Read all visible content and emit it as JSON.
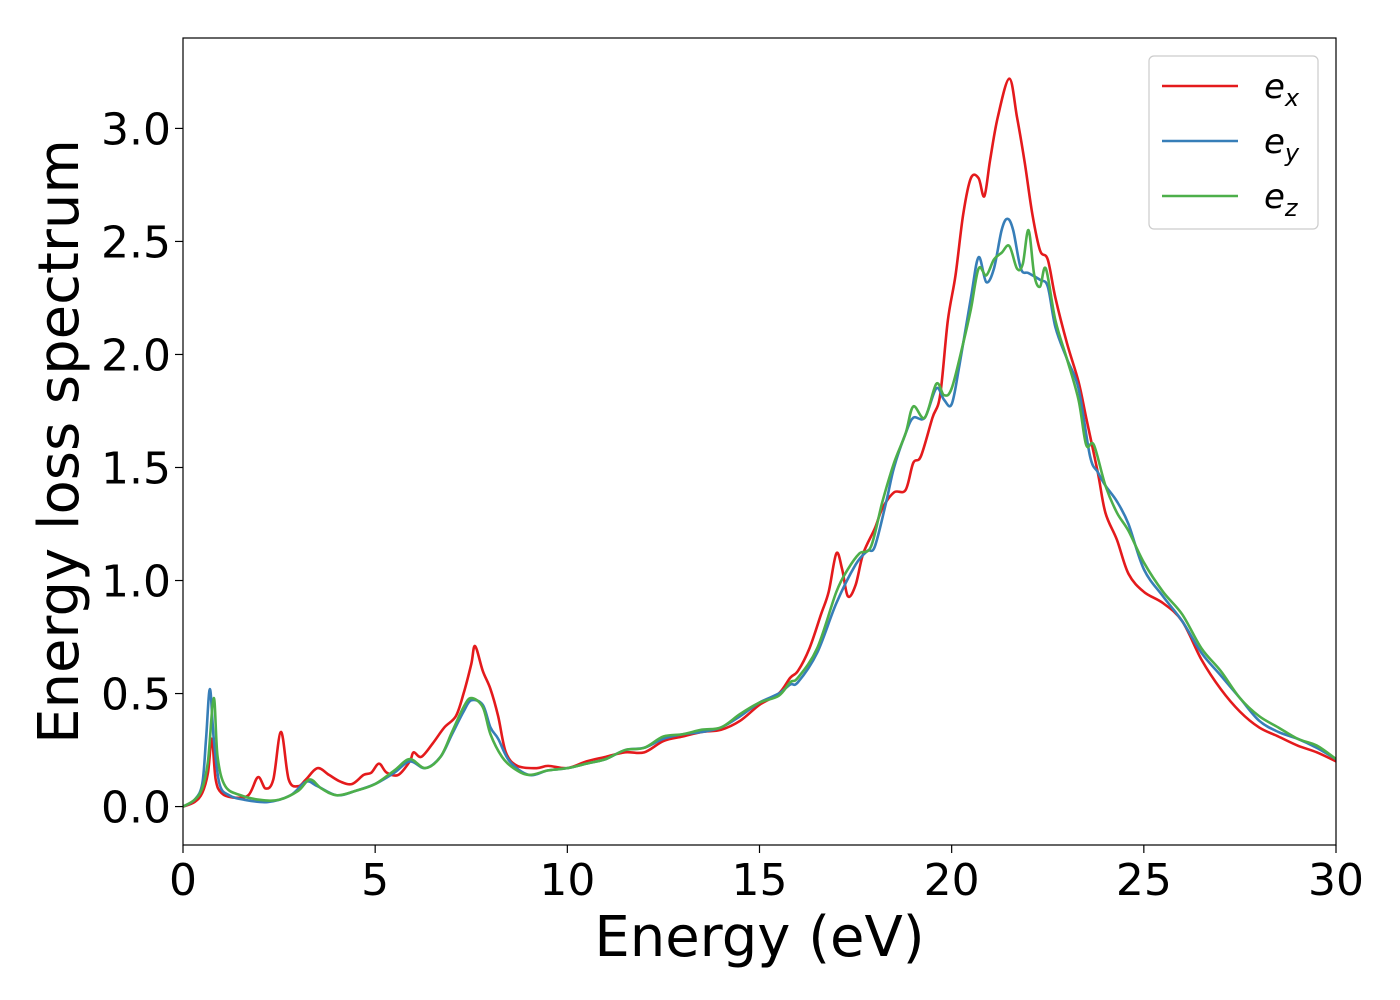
{
  "chart_data": {
    "type": "line",
    "title": "",
    "xlabel": "Energy (eV)",
    "ylabel": "Energy loss spectrum",
    "xlim": [
      0,
      30
    ],
    "ylim": [
      -0.17,
      3.4
    ],
    "xticks": [
      0,
      5,
      10,
      15,
      20,
      25,
      30
    ],
    "xtick_labels": [
      "0",
      "5",
      "10",
      "15",
      "20",
      "25",
      "30"
    ],
    "yticks": [
      0.0,
      0.5,
      1.0,
      1.5,
      2.0,
      2.5,
      3.0
    ],
    "ytick_labels": [
      "0.0",
      "0.5",
      "1.0",
      "1.5",
      "2.0",
      "2.5",
      "3.0"
    ],
    "grid": false,
    "legend_position": "top-right",
    "series": [
      {
        "name": "e_x",
        "legend_base": "e",
        "legend_sub": "x",
        "color": "#e41a1c",
        "points": [
          [
            0,
            0
          ],
          [
            0.3,
            0.02
          ],
          [
            0.5,
            0.06
          ],
          [
            0.65,
            0.15
          ],
          [
            0.75,
            0.3
          ],
          [
            0.85,
            0.12
          ],
          [
            1.0,
            0.06
          ],
          [
            1.3,
            0.04
          ],
          [
            1.7,
            0.05
          ],
          [
            1.95,
            0.13
          ],
          [
            2.15,
            0.08
          ],
          [
            2.35,
            0.12
          ],
          [
            2.55,
            0.33
          ],
          [
            2.75,
            0.12
          ],
          [
            3.0,
            0.09
          ],
          [
            3.2,
            0.12
          ],
          [
            3.5,
            0.17
          ],
          [
            3.8,
            0.14
          ],
          [
            4.1,
            0.11
          ],
          [
            4.4,
            0.1
          ],
          [
            4.7,
            0.14
          ],
          [
            4.9,
            0.15
          ],
          [
            5.1,
            0.19
          ],
          [
            5.3,
            0.15
          ],
          [
            5.6,
            0.14
          ],
          [
            5.9,
            0.2
          ],
          [
            6.0,
            0.24
          ],
          [
            6.2,
            0.22
          ],
          [
            6.5,
            0.28
          ],
          [
            6.8,
            0.35
          ],
          [
            7.1,
            0.4
          ],
          [
            7.3,
            0.5
          ],
          [
            7.5,
            0.63
          ],
          [
            7.6,
            0.71
          ],
          [
            7.8,
            0.6
          ],
          [
            8.0,
            0.52
          ],
          [
            8.2,
            0.4
          ],
          [
            8.4,
            0.24
          ],
          [
            8.7,
            0.18
          ],
          [
            9.2,
            0.17
          ],
          [
            9.5,
            0.18
          ],
          [
            10.0,
            0.17
          ],
          [
            10.5,
            0.2
          ],
          [
            11.0,
            0.22
          ],
          [
            11.5,
            0.24
          ],
          [
            12.0,
            0.24
          ],
          [
            12.5,
            0.29
          ],
          [
            13.0,
            0.31
          ],
          [
            13.5,
            0.33
          ],
          [
            14.0,
            0.34
          ],
          [
            14.5,
            0.38
          ],
          [
            15.0,
            0.45
          ],
          [
            15.5,
            0.5
          ],
          [
            15.8,
            0.57
          ],
          [
            16.0,
            0.6
          ],
          [
            16.3,
            0.7
          ],
          [
            16.6,
            0.85
          ],
          [
            16.8,
            0.95
          ],
          [
            17.0,
            1.12
          ],
          [
            17.15,
            1.05
          ],
          [
            17.3,
            0.93
          ],
          [
            17.5,
            0.98
          ],
          [
            17.7,
            1.12
          ],
          [
            18.0,
            1.23
          ],
          [
            18.2,
            1.32
          ],
          [
            18.5,
            1.39
          ],
          [
            18.8,
            1.4
          ],
          [
            19.0,
            1.52
          ],
          [
            19.2,
            1.55
          ],
          [
            19.5,
            1.72
          ],
          [
            19.7,
            1.82
          ],
          [
            19.9,
            2.15
          ],
          [
            20.1,
            2.35
          ],
          [
            20.3,
            2.62
          ],
          [
            20.5,
            2.78
          ],
          [
            20.7,
            2.78
          ],
          [
            20.85,
            2.7
          ],
          [
            21.0,
            2.86
          ],
          [
            21.2,
            3.05
          ],
          [
            21.5,
            3.22
          ],
          [
            21.7,
            3.05
          ],
          [
            21.9,
            2.85
          ],
          [
            22.1,
            2.62
          ],
          [
            22.3,
            2.46
          ],
          [
            22.5,
            2.42
          ],
          [
            22.7,
            2.25
          ],
          [
            23.0,
            2.05
          ],
          [
            23.3,
            1.88
          ],
          [
            23.5,
            1.72
          ],
          [
            23.8,
            1.48
          ],
          [
            24.0,
            1.3
          ],
          [
            24.3,
            1.18
          ],
          [
            24.6,
            1.03
          ],
          [
            25.0,
            0.95
          ],
          [
            25.5,
            0.9
          ],
          [
            26.0,
            0.82
          ],
          [
            26.5,
            0.65
          ],
          [
            27.0,
            0.52
          ],
          [
            27.5,
            0.42
          ],
          [
            28.0,
            0.35
          ],
          [
            28.5,
            0.31
          ],
          [
            29.0,
            0.27
          ],
          [
            29.5,
            0.24
          ],
          [
            30.0,
            0.2
          ]
        ]
      },
      {
        "name": "e_y",
        "legend_base": "e",
        "legend_sub": "y",
        "color": "#377eb8",
        "points": [
          [
            0,
            0
          ],
          [
            0.3,
            0.03
          ],
          [
            0.5,
            0.1
          ],
          [
            0.6,
            0.3
          ],
          [
            0.7,
            0.52
          ],
          [
            0.8,
            0.3
          ],
          [
            0.95,
            0.1
          ],
          [
            1.2,
            0.05
          ],
          [
            1.6,
            0.03
          ],
          [
            2.2,
            0.02
          ],
          [
            2.8,
            0.05
          ],
          [
            3.2,
            0.11
          ],
          [
            3.5,
            0.09
          ],
          [
            4.0,
            0.05
          ],
          [
            4.5,
            0.07
          ],
          [
            5.0,
            0.1
          ],
          [
            5.5,
            0.15
          ],
          [
            5.9,
            0.2
          ],
          [
            6.3,
            0.17
          ],
          [
            6.7,
            0.22
          ],
          [
            7.0,
            0.32
          ],
          [
            7.3,
            0.42
          ],
          [
            7.5,
            0.47
          ],
          [
            7.8,
            0.45
          ],
          [
            8.0,
            0.35
          ],
          [
            8.2,
            0.3
          ],
          [
            8.5,
            0.2
          ],
          [
            9.0,
            0.14
          ],
          [
            9.5,
            0.16
          ],
          [
            10.0,
            0.17
          ],
          [
            10.5,
            0.19
          ],
          [
            11.0,
            0.21
          ],
          [
            11.5,
            0.25
          ],
          [
            12.0,
            0.26
          ],
          [
            12.5,
            0.3
          ],
          [
            13.0,
            0.32
          ],
          [
            13.5,
            0.33
          ],
          [
            14.0,
            0.35
          ],
          [
            14.5,
            0.4
          ],
          [
            15.0,
            0.46
          ],
          [
            15.5,
            0.5
          ],
          [
            15.8,
            0.54
          ],
          [
            16.0,
            0.55
          ],
          [
            16.5,
            0.68
          ],
          [
            17.0,
            0.9
          ],
          [
            17.5,
            1.07
          ],
          [
            17.8,
            1.13
          ],
          [
            18.0,
            1.15
          ],
          [
            18.3,
            1.35
          ],
          [
            18.5,
            1.5
          ],
          [
            18.8,
            1.65
          ],
          [
            19.0,
            1.72
          ],
          [
            19.3,
            1.72
          ],
          [
            19.6,
            1.85
          ],
          [
            19.8,
            1.8
          ],
          [
            20.0,
            1.78
          ],
          [
            20.2,
            1.95
          ],
          [
            20.5,
            2.25
          ],
          [
            20.7,
            2.43
          ],
          [
            20.9,
            2.32
          ],
          [
            21.1,
            2.38
          ],
          [
            21.3,
            2.55
          ],
          [
            21.45,
            2.6
          ],
          [
            21.6,
            2.55
          ],
          [
            21.8,
            2.38
          ],
          [
            22.0,
            2.36
          ],
          [
            22.3,
            2.33
          ],
          [
            22.5,
            2.3
          ],
          [
            22.7,
            2.12
          ],
          [
            23.0,
            1.98
          ],
          [
            23.3,
            1.85
          ],
          [
            23.6,
            1.55
          ],
          [
            23.8,
            1.48
          ],
          [
            24.0,
            1.42
          ],
          [
            24.3,
            1.35
          ],
          [
            24.6,
            1.25
          ],
          [
            25.0,
            1.05
          ],
          [
            25.5,
            0.93
          ],
          [
            26.0,
            0.82
          ],
          [
            26.5,
            0.68
          ],
          [
            27.0,
            0.58
          ],
          [
            27.5,
            0.48
          ],
          [
            28.0,
            0.38
          ],
          [
            28.5,
            0.33
          ],
          [
            29.0,
            0.3
          ],
          [
            29.5,
            0.26
          ],
          [
            30.0,
            0.21
          ]
        ]
      },
      {
        "name": "e_z",
        "legend_base": "e",
        "legend_sub": "z",
        "color": "#4daf4a",
        "points": [
          [
            0,
            0
          ],
          [
            0.3,
            0.03
          ],
          [
            0.5,
            0.08
          ],
          [
            0.65,
            0.2
          ],
          [
            0.8,
            0.48
          ],
          [
            0.9,
            0.22
          ],
          [
            1.1,
            0.09
          ],
          [
            1.5,
            0.05
          ],
          [
            2.0,
            0.03
          ],
          [
            2.5,
            0.03
          ],
          [
            3.0,
            0.07
          ],
          [
            3.3,
            0.12
          ],
          [
            3.6,
            0.08
          ],
          [
            4.0,
            0.05
          ],
          [
            4.5,
            0.07
          ],
          [
            5.0,
            0.1
          ],
          [
            5.5,
            0.16
          ],
          [
            5.9,
            0.21
          ],
          [
            6.3,
            0.17
          ],
          [
            6.7,
            0.22
          ],
          [
            7.0,
            0.33
          ],
          [
            7.3,
            0.44
          ],
          [
            7.5,
            0.48
          ],
          [
            7.8,
            0.44
          ],
          [
            8.0,
            0.32
          ],
          [
            8.3,
            0.22
          ],
          [
            8.6,
            0.17
          ],
          [
            9.0,
            0.14
          ],
          [
            9.5,
            0.16
          ],
          [
            10.0,
            0.17
          ],
          [
            10.5,
            0.19
          ],
          [
            11.0,
            0.21
          ],
          [
            11.5,
            0.25
          ],
          [
            12.0,
            0.26
          ],
          [
            12.5,
            0.31
          ],
          [
            13.0,
            0.32
          ],
          [
            13.5,
            0.34
          ],
          [
            14.0,
            0.35
          ],
          [
            14.5,
            0.41
          ],
          [
            15.0,
            0.46
          ],
          [
            15.5,
            0.49
          ],
          [
            15.8,
            0.55
          ],
          [
            16.0,
            0.57
          ],
          [
            16.5,
            0.7
          ],
          [
            17.0,
            0.95
          ],
          [
            17.3,
            1.05
          ],
          [
            17.6,
            1.12
          ],
          [
            17.9,
            1.15
          ],
          [
            18.2,
            1.35
          ],
          [
            18.5,
            1.52
          ],
          [
            18.8,
            1.65
          ],
          [
            19.0,
            1.77
          ],
          [
            19.3,
            1.72
          ],
          [
            19.6,
            1.87
          ],
          [
            19.8,
            1.82
          ],
          [
            20.0,
            1.85
          ],
          [
            20.3,
            2.05
          ],
          [
            20.5,
            2.2
          ],
          [
            20.7,
            2.38
          ],
          [
            20.9,
            2.35
          ],
          [
            21.1,
            2.42
          ],
          [
            21.3,
            2.45
          ],
          [
            21.5,
            2.48
          ],
          [
            21.7,
            2.38
          ],
          [
            21.85,
            2.4
          ],
          [
            22.0,
            2.55
          ],
          [
            22.15,
            2.35
          ],
          [
            22.3,
            2.3
          ],
          [
            22.45,
            2.38
          ],
          [
            22.7,
            2.15
          ],
          [
            23.0,
            1.98
          ],
          [
            23.3,
            1.8
          ],
          [
            23.5,
            1.6
          ],
          [
            23.7,
            1.6
          ],
          [
            24.0,
            1.42
          ],
          [
            24.3,
            1.3
          ],
          [
            24.6,
            1.22
          ],
          [
            25.0,
            1.08
          ],
          [
            25.5,
            0.95
          ],
          [
            26.0,
            0.85
          ],
          [
            26.5,
            0.7
          ],
          [
            27.0,
            0.6
          ],
          [
            27.5,
            0.48
          ],
          [
            28.0,
            0.4
          ],
          [
            28.5,
            0.35
          ],
          [
            29.0,
            0.3
          ],
          [
            29.5,
            0.27
          ],
          [
            30.0,
            0.21
          ]
        ]
      }
    ]
  }
}
